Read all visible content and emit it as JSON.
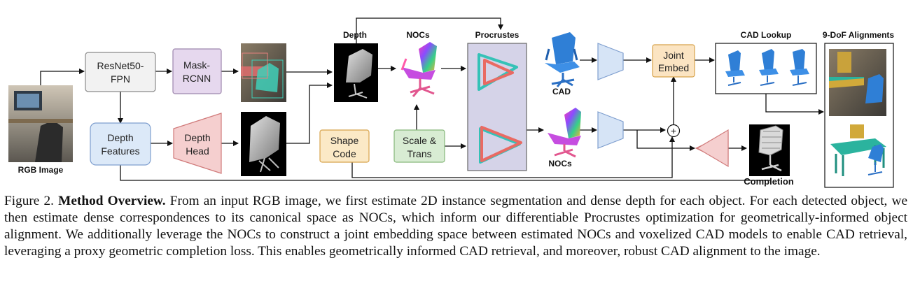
{
  "labels": {
    "rgb_image": "RGB Image",
    "resnet": [
      "ResNet50-",
      "FPN"
    ],
    "mask_rcnn": [
      "Mask-",
      "RCNN"
    ],
    "depth_features": [
      "Depth",
      "Features"
    ],
    "depth_head": [
      "Depth",
      "Head"
    ],
    "depth_title": "Depth",
    "nocs_title": "NOCs",
    "procrustes_title": "Procrustes",
    "shape_code": [
      "Shape",
      "Code"
    ],
    "scale_trans": [
      "Scale &",
      "Trans"
    ],
    "cad": "CAD",
    "nocs_lower": "NOCs",
    "joint_embed": [
      "Joint",
      "Embed"
    ],
    "cad_lookup": "CAD Lookup",
    "alignments": "9-DoF Alignments",
    "completion": "Completion",
    "plus": "+"
  },
  "colors": {
    "resnet_fill": "#f2f2f2",
    "mask_fill": "#e6d8ee",
    "depth_features_fill": "#dce9f8",
    "depth_head_fill": "#f5cfcf",
    "shape_code_fill": "#fbe9c6",
    "scale_fill": "#d8ecd3",
    "procrustes_fill": "#d5d3e8",
    "joint_fill": "#fbe4c2",
    "encoder_fill": "#d6e4f6",
    "decoder_fill": "#f5cfcf"
  },
  "caption": {
    "figure_label": "Figure 2.",
    "title": "Method Overview.",
    "text": "From an input RGB image, we first estimate 2D instance segmentation and dense depth for each object. For each detected object, we then estimate dense correspondences to its canonical space as NOCs, which inform our differentiable Procrustes optimization for geometrically-informed object alignment.  We additionally leverage the NOCs to construct a joint embedding space between estimated NOCs and voxelized CAD models to enable CAD retrieval, leveraging a proxy geometric completion loss. This enables geometrically informed CAD retrieval, and moreover, robust CAD alignment to the image."
  }
}
